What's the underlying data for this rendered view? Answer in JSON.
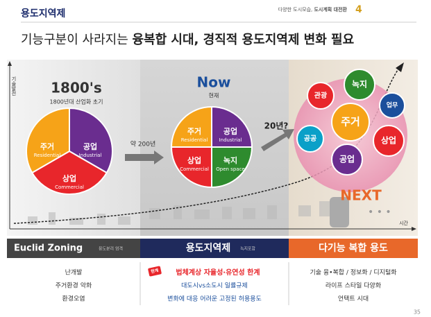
{
  "header": {
    "section": "용도지역제",
    "tagline": "다양한 도시모습, ",
    "tagline_bold": "도시계획 대전환",
    "number": "4"
  },
  "title": {
    "plain": "기능구분이 사라지는 ",
    "bold": "융복합 시대, 경직적 용도지역제 변화 필요"
  },
  "axis": {
    "y": "기술발전",
    "x": "시간"
  },
  "past": {
    "title": "1800's",
    "subtitle": "1800년대 산업화 초기",
    "slices": [
      {
        "ko": "주거",
        "en": "Residential"
      },
      {
        "ko": "공업",
        "en": "Industrial"
      },
      {
        "ko": "상업",
        "en": "Commercial"
      }
    ]
  },
  "arrow1": "약 200년",
  "now": {
    "title": "Now",
    "subtitle": "현재",
    "slices": [
      {
        "ko": "주거",
        "en": "Residential"
      },
      {
        "ko": "공업",
        "en": "Industrial"
      },
      {
        "ko": "상업",
        "en": "Commercial"
      },
      {
        "ko": "녹지",
        "en": "Open space"
      }
    ]
  },
  "arrow2": "20년?",
  "next": {
    "title": "NEXT",
    "bubbles": [
      "관광",
      "녹지",
      "업무",
      "주거",
      "공공",
      "상업",
      "공업"
    ]
  },
  "columns": [
    {
      "title": "Euclid Zoning",
      "note": "용도분리 엄격",
      "lines": [
        "난개발",
        "주거환경 악화",
        "환경오염"
      ]
    },
    {
      "title": "용도지역제",
      "note": "녹지포함",
      "badge": "한계",
      "lines": [
        "법체계상 자율성·유연성 한계",
        "대도시vs소도시 일률규제",
        "변화에 대응 어려운 고정된 허용용도"
      ]
    },
    {
      "title": "다기능 복합 용도",
      "lines": [
        "기술 융•복합 / 정보화 / 디지털화",
        "라이프 스타일 다양화",
        "언택트 시대"
      ]
    }
  ],
  "page": "35"
}
